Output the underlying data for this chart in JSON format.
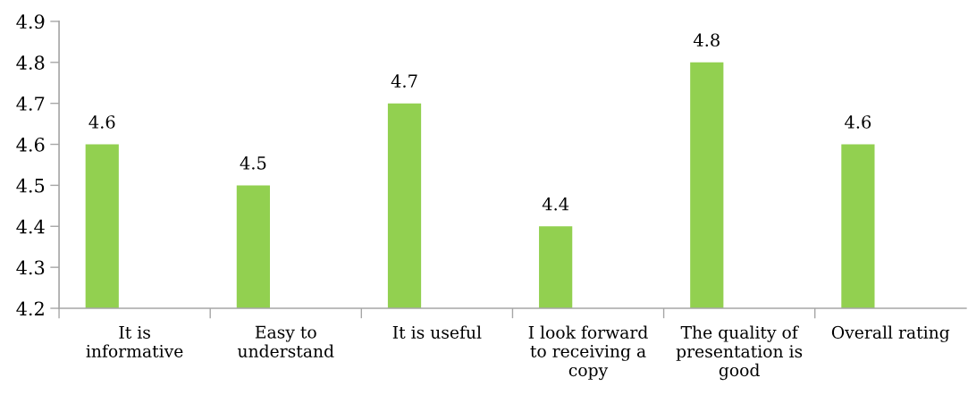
{
  "chart_data": {
    "type": "bar",
    "categories": [
      "It is\ninformative",
      "Easy to\nunderstand",
      "It is useful",
      "I look forward\nto receiving a\ncopy",
      "The quality of\npresentation is\ngood",
      "Overall rating"
    ],
    "values": [
      4.6,
      4.5,
      4.7,
      4.4,
      4.8,
      4.6
    ],
    "color": "#92d050",
    "ylim": [
      4.2,
      4.9
    ],
    "yticks": [
      4.2,
      4.3,
      4.4,
      4.5,
      4.6,
      4.7,
      4.8,
      4.9
    ],
    "data_labels": true,
    "grid": false,
    "legend": false
  }
}
